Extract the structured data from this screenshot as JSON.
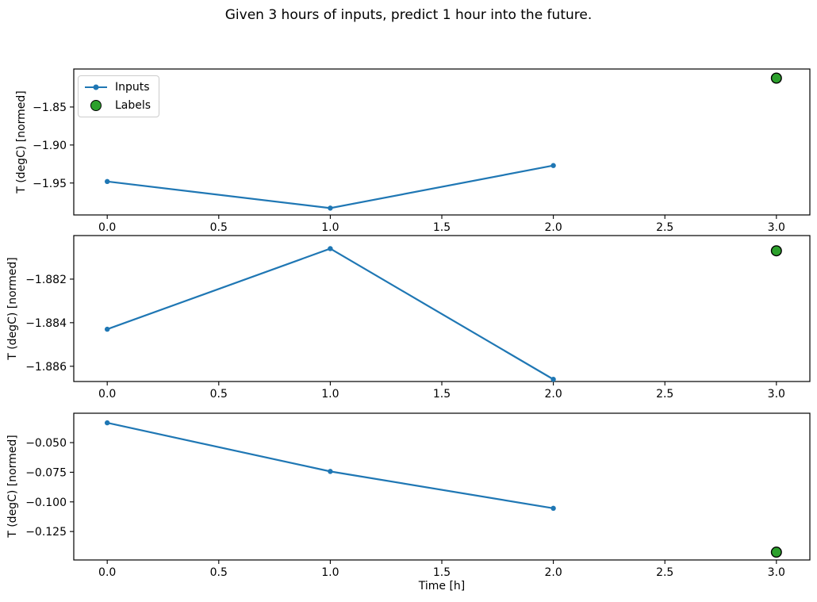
{
  "figure": {
    "title": "Given 3 hours of inputs, predict 1 hour into the future.",
    "background": "#ffffff"
  },
  "colors": {
    "inputs": "#1f77b4",
    "labels": "#2ca02c",
    "labels_edge": "#000000",
    "axes": "#000000"
  },
  "legend": {
    "items": [
      {
        "label": "Inputs",
        "type": "line-marker",
        "color": "#1f77b4"
      },
      {
        "label": "Labels",
        "type": "scatter-circle",
        "color": "#2ca02c",
        "edge": "#000000"
      }
    ]
  },
  "chart_data": [
    {
      "type": "line",
      "ylabel": "T (degC) [normed]",
      "xlabel": "",
      "x": [
        0.0,
        1.0,
        2.0
      ],
      "series": [
        {
          "name": "Inputs",
          "values": [
            -1.948,
            -1.983,
            -1.927
          ]
        }
      ],
      "labels_point": {
        "x": 3.0,
        "y": -1.812
      },
      "xlim": [
        -0.15,
        3.15
      ],
      "ylim": [
        -1.992,
        -1.8
      ],
      "xticks": [
        0.0,
        0.5,
        1.0,
        1.5,
        2.0,
        2.5,
        3.0
      ],
      "xtick_labels": [
        "0.0",
        "0.5",
        "1.0",
        "1.5",
        "2.0",
        "2.5",
        "3.0"
      ],
      "yticks": [
        -1.85,
        -1.9,
        -1.95
      ],
      "ytick_labels": [
        "−1.85",
        "−1.90",
        "−1.95"
      ],
      "grid": false,
      "legend_position": "upper left"
    },
    {
      "type": "line",
      "ylabel": "T (degC) [normed]",
      "xlabel": "",
      "x": [
        0.0,
        1.0,
        2.0
      ],
      "series": [
        {
          "name": "Inputs",
          "values": [
            -1.8843,
            -1.8806,
            -1.8866
          ]
        }
      ],
      "labels_point": {
        "x": 3.0,
        "y": -1.8807
      },
      "xlim": [
        -0.15,
        3.15
      ],
      "ylim": [
        -1.8867,
        -1.88
      ],
      "xticks": [
        0.0,
        0.5,
        1.0,
        1.5,
        2.0,
        2.5,
        3.0
      ],
      "xtick_labels": [
        "0.0",
        "0.5",
        "1.0",
        "1.5",
        "2.0",
        "2.5",
        "3.0"
      ],
      "yticks": [
        -1.882,
        -1.884,
        -1.886
      ],
      "ytick_labels": [
        "−1.882",
        "−1.884",
        "−1.886"
      ],
      "grid": false,
      "legend_position": "none"
    },
    {
      "type": "line",
      "ylabel": "T (degC) [normed]",
      "xlabel": "Time [h]",
      "x": [
        0.0,
        1.0,
        2.0
      ],
      "series": [
        {
          "name": "Inputs",
          "values": [
            -0.0333,
            -0.0743,
            -0.1054
          ]
        }
      ],
      "labels_point": {
        "x": 3.0,
        "y": -0.1424
      },
      "xlim": [
        -0.15,
        3.15
      ],
      "ylim": [
        -0.149,
        -0.0252
      ],
      "xticks": [
        0.0,
        0.5,
        1.0,
        1.5,
        2.0,
        2.5,
        3.0
      ],
      "xtick_labels": [
        "0.0",
        "0.5",
        "1.0",
        "1.5",
        "2.0",
        "2.5",
        "3.0"
      ],
      "yticks": [
        -0.05,
        -0.075,
        -0.1,
        -0.125
      ],
      "ytick_labels": [
        "−0.050",
        "−0.075",
        "−0.100",
        "−0.125"
      ],
      "grid": false,
      "legend_position": "none"
    }
  ]
}
